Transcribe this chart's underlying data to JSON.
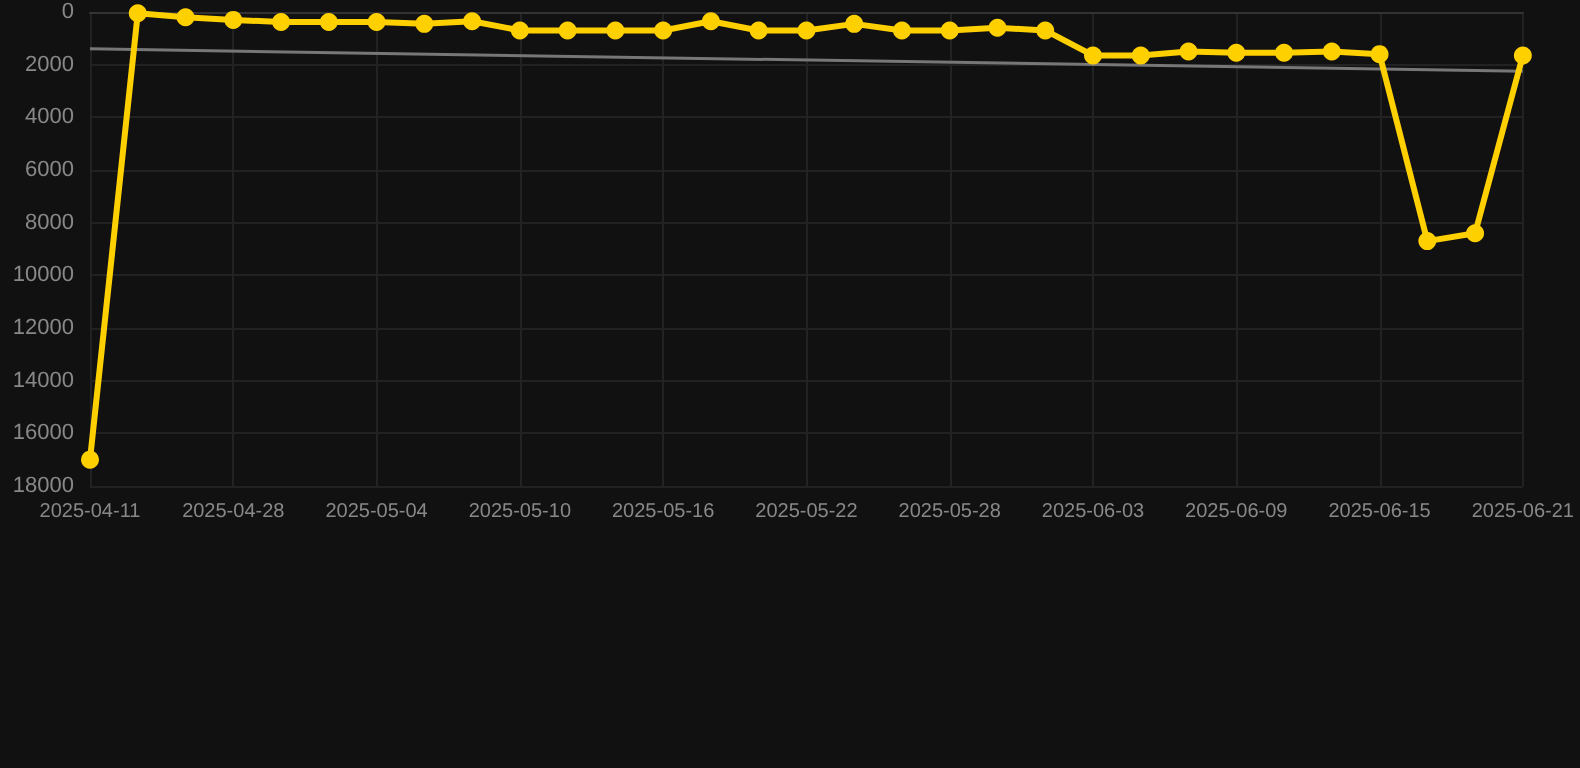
{
  "chart_data": {
    "type": "line",
    "categories": [
      "2025-04-11",
      null,
      null,
      "2025-04-28",
      null,
      null,
      "2025-05-04",
      null,
      null,
      "2025-05-10",
      null,
      null,
      "2025-05-16",
      null,
      null,
      "2025-05-22",
      null,
      null,
      "2025-05-28",
      null,
      null,
      "2025-06-03",
      null,
      null,
      "2025-06-09",
      null,
      null,
      "2025-06-15",
      null,
      null,
      "2025-06-21"
    ],
    "series": [
      {
        "color": "#ffd000",
        "marker": "circle",
        "values": [
          17000,
          50,
          200,
          300,
          380,
          380,
          380,
          450,
          350,
          700,
          700,
          700,
          700,
          350,
          700,
          700,
          450,
          700,
          700,
          600,
          700,
          1650,
          1650,
          1500,
          1550,
          1550,
          1500,
          1600,
          8700,
          8400,
          1650
        ]
      },
      {
        "type": "line",
        "color": "#777777",
        "marker": "none",
        "values": [
          1400,
          null,
          null,
          null,
          null,
          null,
          null,
          null,
          null,
          null,
          null,
          null,
          null,
          null,
          null,
          null,
          null,
          null,
          null,
          null,
          null,
          null,
          null,
          null,
          null,
          null,
          null,
          null,
          null,
          null,
          2250
        ]
      }
    ],
    "ylim": [
      18000,
      0
    ],
    "yticks": [
      0,
      2000,
      4000,
      6000,
      8000,
      10000,
      12000,
      14000,
      16000,
      18000
    ],
    "grid": true
  }
}
